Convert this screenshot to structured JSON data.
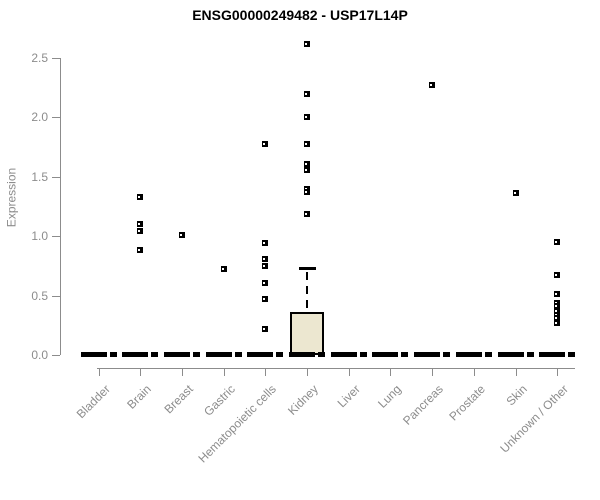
{
  "chart_data": {
    "type": "box",
    "title": "ENSG00000249482 - USP17L14P",
    "ylabel": "Expression",
    "xlabel": "",
    "ylim": [
      0,
      2.5
    ],
    "yticks": [
      0.0,
      0.5,
      1.0,
      1.5,
      2.0,
      2.5
    ],
    "ytick_labels": [
      "0.0",
      "0.5",
      "1.0",
      "1.5",
      "2.0",
      "2.5"
    ],
    "grid": false,
    "legend": false,
    "categories": [
      "Bladder",
      "Brain",
      "Breast",
      "Gastric",
      "Hematopoietic cells",
      "Kidney",
      "Liver",
      "Lung",
      "Pancreas",
      "Prostate",
      "Skin",
      "Unknown / Other"
    ],
    "boxes": [
      {
        "category": "Bladder",
        "median": 0,
        "q1": 0,
        "q3": 0,
        "whisker_low": 0,
        "whisker_high": 0,
        "outliers": []
      },
      {
        "category": "Brain",
        "median": 0,
        "q1": 0,
        "q3": 0,
        "whisker_low": 0,
        "whisker_high": 0,
        "outliers": [
          1.33,
          1.1,
          1.04,
          0.88
        ]
      },
      {
        "category": "Breast",
        "median": 0,
        "q1": 0,
        "q3": 0,
        "whisker_low": 0,
        "whisker_high": 0,
        "outliers": [
          1.01
        ]
      },
      {
        "category": "Gastric",
        "median": 0,
        "q1": 0,
        "q3": 0,
        "whisker_low": 0,
        "whisker_high": 0,
        "outliers": [
          0.72
        ]
      },
      {
        "category": "Hematopoietic cells",
        "median": 0,
        "q1": 0,
        "q3": 0,
        "whisker_low": 0,
        "whisker_high": 0,
        "outliers": [
          1.78,
          0.94,
          0.81,
          0.75,
          0.61,
          0.47,
          0.22
        ]
      },
      {
        "category": "Kidney",
        "median": 0,
        "q1": 0,
        "q3": 0.36,
        "whisker_low": 0,
        "whisker_high": 0.72,
        "outliers": [
          2.62,
          2.2,
          2.0,
          1.78,
          1.61,
          1.56,
          1.4,
          1.37,
          1.19
        ]
      },
      {
        "category": "Liver",
        "median": 0,
        "q1": 0,
        "q3": 0,
        "whisker_low": 0,
        "whisker_high": 0,
        "outliers": []
      },
      {
        "category": "Lung",
        "median": 0,
        "q1": 0,
        "q3": 0,
        "whisker_low": 0,
        "whisker_high": 0,
        "outliers": []
      },
      {
        "category": "Pancreas",
        "median": 0,
        "q1": 0,
        "q3": 0,
        "whisker_low": 0,
        "whisker_high": 0,
        "outliers": [
          2.27
        ]
      },
      {
        "category": "Prostate",
        "median": 0,
        "q1": 0,
        "q3": 0,
        "whisker_low": 0,
        "whisker_high": 0,
        "outliers": []
      },
      {
        "category": "Skin",
        "median": 0,
        "q1": 0,
        "q3": 0,
        "whisker_low": 0,
        "whisker_high": 0,
        "outliers": [
          1.36
        ]
      },
      {
        "category": "Unknown / Other",
        "median": 0,
        "q1": 0,
        "q3": 0,
        "whisker_low": 0,
        "whisker_high": 0,
        "outliers": [
          0.95,
          0.67,
          0.51,
          0.44,
          0.41,
          0.37,
          0.34,
          0.31,
          0.27
        ]
      }
    ],
    "colors": {
      "box_fill": "#ece7d0",
      "box_border": "#000000",
      "median_bar": "#000000",
      "outlier": "#000000",
      "axis": "#8c8c8c",
      "labels": "#8c8c8c",
      "title": "#000000",
      "background": "#ffffff"
    }
  }
}
